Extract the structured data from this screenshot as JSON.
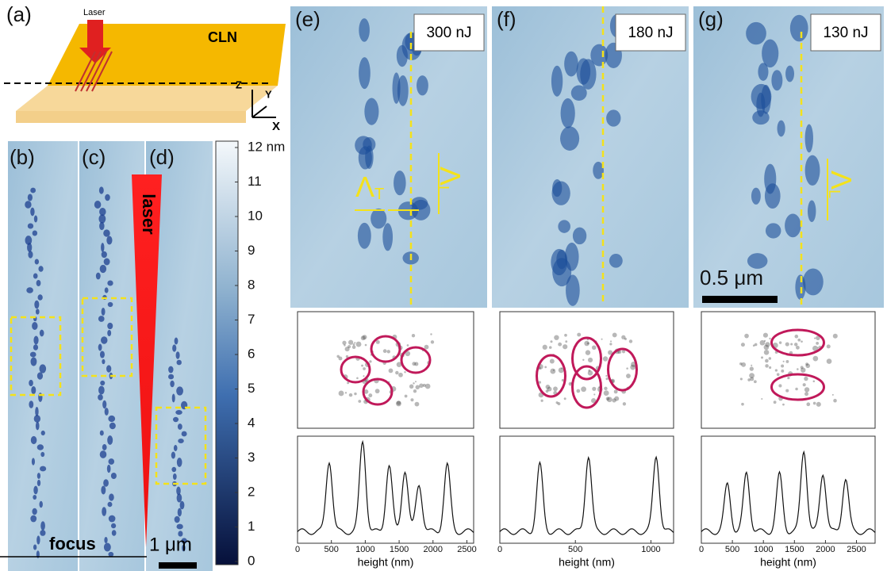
{
  "panels": {
    "a": {
      "label": "(a)",
      "laser": "Laser",
      "crystal": "CLN",
      "axis_z": "Z",
      "axis_y": "Y",
      "axis_x": "X"
    },
    "b": {
      "label": "(b)"
    },
    "c": {
      "label": "(c)"
    },
    "d": {
      "label": "(d)",
      "laser": "laser",
      "focus": "focus",
      "scale_bar": "1 μm"
    },
    "colorbar": {
      "ticks": [
        {
          "value": 12,
          "label": "12 nm"
        },
        11,
        10,
        9,
        8,
        7,
        6,
        5,
        4,
        3,
        2,
        1,
        0
      ]
    },
    "e": {
      "label": "(e)",
      "energy": "300 nJ",
      "lambda_t": {
        "symbol": "Λ",
        "sub": "T"
      },
      "lambda_l": {
        "symbol": "Λ",
        "sub": "L"
      },
      "profile": {
        "xlabel": "height (nm)",
        "xticks": [
          0,
          500,
          1000,
          1500,
          2000,
          2500
        ]
      }
    },
    "f": {
      "label": "(f)",
      "energy": "180 nJ",
      "profile": {
        "xlabel": "height (nm)",
        "xticks": [
          0,
          500,
          1000
        ]
      }
    },
    "g": {
      "label": "(g)",
      "energy": "130 nJ",
      "lambda_l": {
        "symbol": "Λ",
        "sub": "L"
      },
      "scale_bar": "0.5 μm",
      "profile": {
        "xlabel": "height (nm)",
        "xticks": [
          0,
          500,
          1000,
          1500,
          2000,
          2500
        ]
      }
    }
  }
}
